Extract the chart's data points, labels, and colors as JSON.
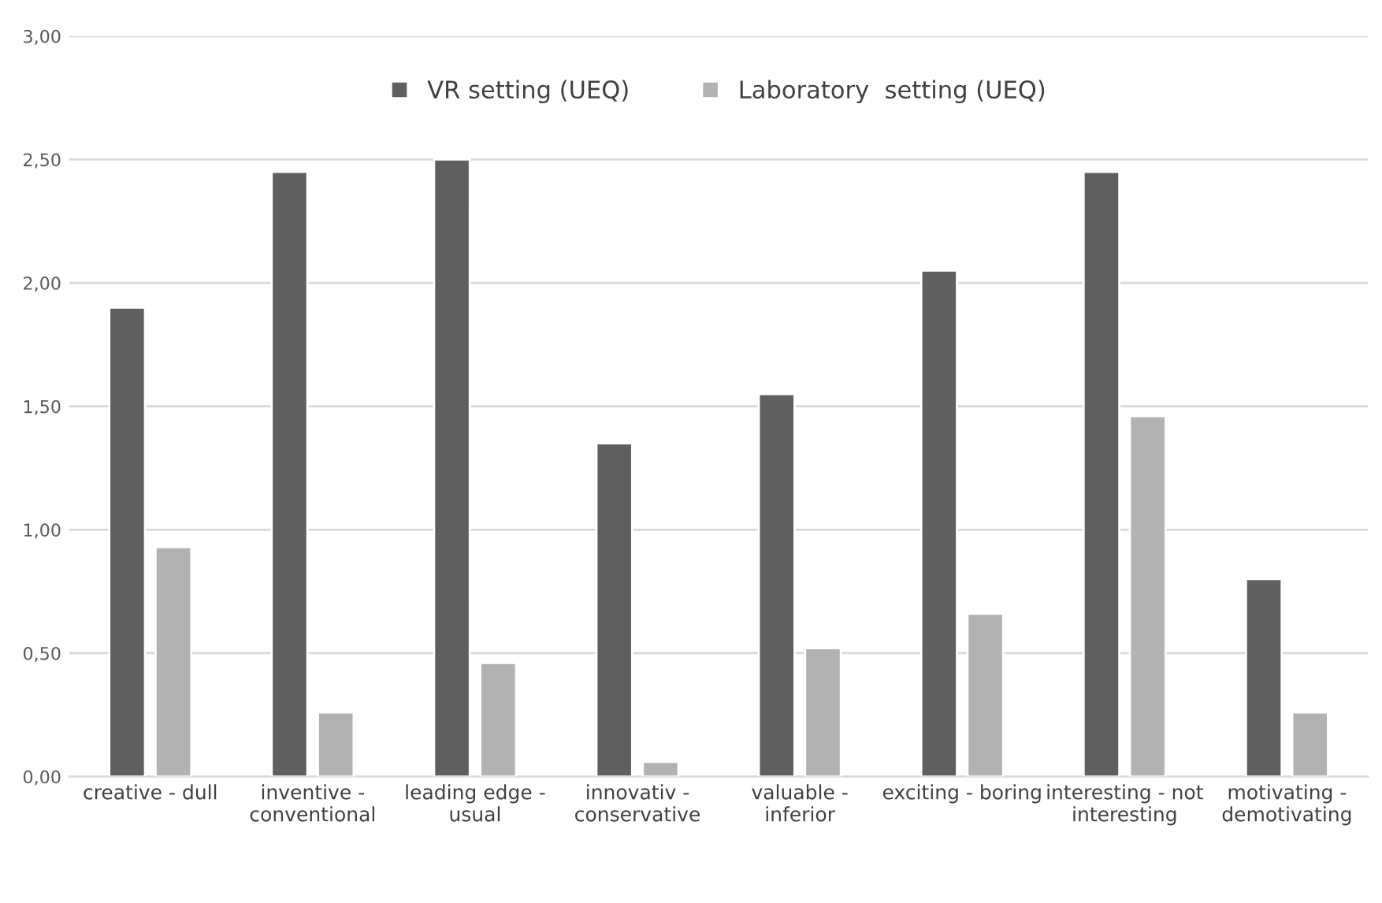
{
  "chart_data": {
    "type": "bar",
    "categories": [
      "creative - dull",
      "inventive -\nconventional",
      "leading edge -\nusual",
      "innovativ -\nconservative",
      "valuable -\ninferior",
      "exciting - boring",
      "interesting - not\ninteresting",
      "motivating -\ndemotivating"
    ],
    "series": [
      {
        "name": "VR setting (UEQ)",
        "color": "#5f5f5f",
        "values": [
          1.9,
          2.45,
          2.5,
          1.35,
          1.55,
          2.05,
          2.45,
          0.8
        ]
      },
      {
        "name": "Laboratory  setting (UEQ)",
        "color": "#b2b2b2",
        "values": [
          0.93,
          0.26,
          0.46,
          0.06,
          0.52,
          0.66,
          1.46,
          0.26
        ]
      }
    ],
    "ylim": [
      0,
      3
    ],
    "yticks": [
      {
        "value": 0,
        "label": "0,00"
      },
      {
        "value": 0.5,
        "label": "0,50"
      },
      {
        "value": 1,
        "label": "1,00"
      },
      {
        "value": 1.5,
        "label": "1,50"
      },
      {
        "value": 2,
        "label": "2,00"
      },
      {
        "value": 2.5,
        "label": "2,50"
      },
      {
        "value": 3,
        "label": "3,00"
      }
    ],
    "grid": "y",
    "legend": "top"
  }
}
